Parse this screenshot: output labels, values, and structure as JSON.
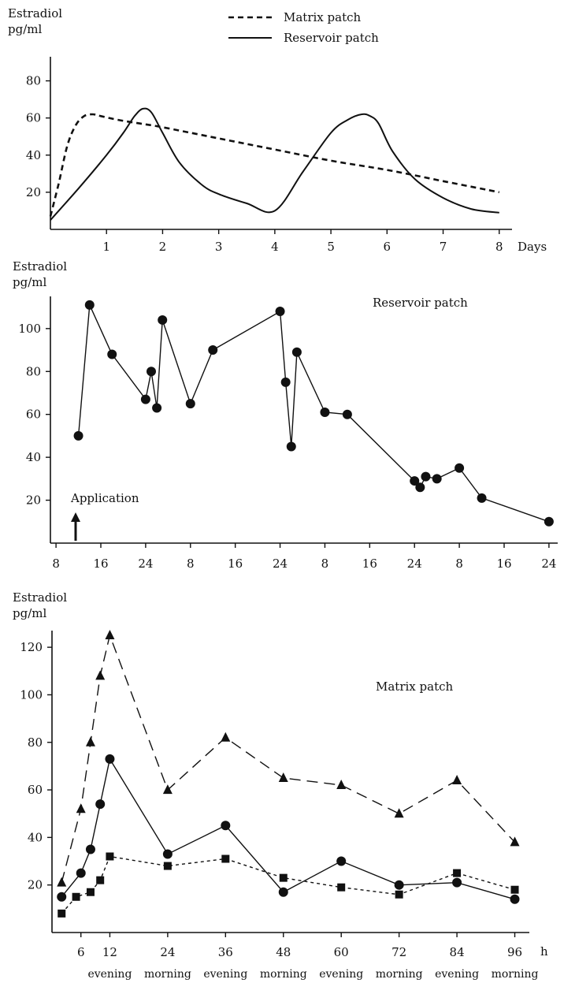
{
  "chart_data": [
    {
      "type": "line",
      "ylabel_line1": "Estradiol",
      "ylabel_line2": "pg/ml",
      "xlabel": "Days",
      "xlim": [
        0,
        8.2
      ],
      "ylim": [
        0,
        90
      ],
      "xticks": [
        1,
        2,
        3,
        4,
        5,
        6,
        7,
        8
      ],
      "yticks": [
        20,
        40,
        60,
        80
      ],
      "legend": [
        {
          "label": "Matrix patch",
          "style": "dashed"
        },
        {
          "label": "Reservoir patch",
          "style": "solid"
        }
      ],
      "series": [
        {
          "name": "Matrix patch",
          "style": "dashed",
          "x": [
            0,
            0.15,
            0.3,
            0.45,
            0.6,
            0.75,
            0.9,
            1.2,
            1.6,
            2,
            3,
            4,
            5,
            6,
            7,
            8
          ],
          "y": [
            7,
            25,
            45,
            56,
            61,
            62,
            61,
            59,
            57,
            55,
            49,
            43,
            37,
            32,
            26,
            20
          ]
        },
        {
          "name": "Reservoir patch",
          "style": "solid",
          "x": [
            0,
            0.5,
            1,
            1.3,
            1.5,
            1.65,
            1.8,
            2,
            2.3,
            2.7,
            3,
            3.5,
            4,
            4.5,
            5,
            5.3,
            5.55,
            5.7,
            5.85,
            6.1,
            6.5,
            7,
            7.5,
            8
          ],
          "y": [
            5,
            22,
            40,
            52,
            61,
            65,
            63,
            52,
            36,
            24,
            19,
            14,
            10,
            31,
            52,
            59,
            62,
            61,
            57,
            42,
            27,
            17,
            11,
            9
          ]
        }
      ]
    },
    {
      "type": "line",
      "ylabel_line1": "Estradiol",
      "ylabel_line2": "pg/ml",
      "annotation": "Application",
      "series_label": "Reservoir patch",
      "xlim": [
        7,
        97
      ],
      "ylim": [
        0,
        115
      ],
      "xtick_positions": [
        8,
        16,
        24,
        32,
        40,
        48,
        56,
        64,
        72,
        80,
        88,
        96
      ],
      "xtick_labels": [
        "8",
        "16",
        "24",
        "8",
        "16",
        "24",
        "8",
        "16",
        "24",
        "8",
        "16",
        "24"
      ],
      "yticks": [
        20,
        40,
        60,
        80,
        100
      ],
      "series": [
        {
          "name": "Reservoir patch",
          "x": [
            12,
            14,
            18,
            24,
            25,
            26,
            27,
            32,
            36,
            48,
            49,
            50,
            51,
            56,
            60,
            72,
            73,
            74,
            76,
            80,
            84,
            96
          ],
          "y": [
            50,
            111,
            88,
            67,
            80,
            63,
            104,
            65,
            90,
            108,
            75,
            45,
            89,
            61,
            60,
            29,
            26,
            31,
            30,
            35,
            21,
            10
          ]
        }
      ]
    },
    {
      "type": "line",
      "ylabel_line1": "Estradiol",
      "ylabel_line2": "pg/ml",
      "series_label": "Matrix patch",
      "xlabel": "h",
      "xlim": [
        0,
        100
      ],
      "ylim": [
        0,
        128
      ],
      "xticks": [
        6,
        12,
        24,
        36,
        48,
        60,
        72,
        84,
        96
      ],
      "xtick_sublabels": [
        "",
        "evening",
        "morning",
        "evening",
        "morning",
        "evening",
        "morning",
        "evening",
        "morning"
      ],
      "yticks": [
        20,
        40,
        60,
        80,
        100,
        120
      ],
      "series": [
        {
          "name": "triangle",
          "marker": "triangle",
          "style": "long-dash",
          "x": [
            2,
            6,
            8,
            10,
            12,
            24,
            36,
            48,
            60,
            72,
            84,
            96
          ],
          "y": [
            21,
            52,
            80,
            108,
            125,
            60,
            82,
            65,
            62,
            50,
            64,
            38
          ]
        },
        {
          "name": "circle",
          "marker": "circle",
          "style": "solid",
          "x": [
            2,
            6,
            8,
            10,
            12,
            24,
            36,
            48,
            60,
            72,
            84,
            96
          ],
          "y": [
            15,
            25,
            35,
            54,
            73,
            33,
            45,
            17,
            30,
            20,
            21,
            14
          ]
        },
        {
          "name": "square",
          "marker": "square",
          "style": "short-dash",
          "x": [
            2,
            5,
            8,
            10,
            12,
            24,
            36,
            48,
            60,
            72,
            84,
            96
          ],
          "y": [
            8,
            15,
            17,
            22,
            32,
            28,
            31,
            23,
            19,
            16,
            25,
            18
          ]
        }
      ]
    }
  ]
}
